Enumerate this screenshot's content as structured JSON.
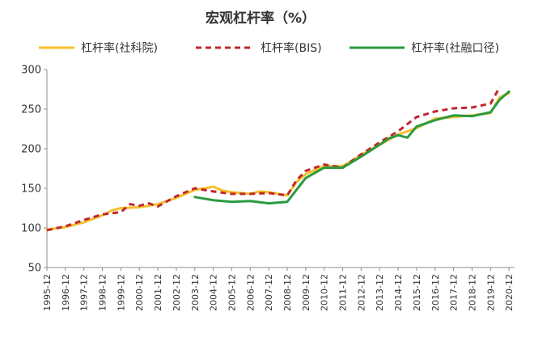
{
  "chart_data": {
    "type": "line",
    "title": "宏观杠杆率（%）",
    "xlabel": "",
    "ylabel": "",
    "ylim": [
      50,
      300
    ],
    "yticks": [
      "300",
      "250",
      "200",
      "150",
      "100",
      "50"
    ],
    "grid": false,
    "legend_position": "top",
    "x_tick_labels": [
      "1995-12",
      "1996-12",
      "1997-12",
      "1998-12",
      "1999-12",
      "2000-12",
      "2001-12",
      "2002-12",
      "2003-12",
      "2004-12",
      "2005-12",
      "2006-12",
      "2007-12",
      "2008-12",
      "2009-12",
      "2010-12",
      "2011-12",
      "2012-12",
      "2013-12",
      "2014-12",
      "2015-12",
      "2016-12",
      "2017-12",
      "2018-12",
      "2019-12",
      "2020-12"
    ],
    "series": [
      {
        "name": "杠杆率(社科院)",
        "color": "#F5C02B",
        "dash": "solid",
        "x": [
          1995,
          1996,
          1997,
          1998,
          1998.5,
          1999,
          2000,
          2001,
          2002,
          2003,
          2004,
          2004.5,
          2005,
          2006,
          2006.5,
          2007,
          2008,
          2008.5,
          2009,
          2010,
          2011,
          2012,
          2013,
          2014,
          2015,
          2016,
          2017,
          2018,
          2019,
          2019.5,
          2020
        ],
        "values": [
          98,
          101,
          107,
          116,
          122,
          125,
          126,
          130,
          138,
          148,
          152,
          147,
          145,
          143,
          146,
          145,
          141,
          158,
          168,
          178,
          178,
          192,
          205,
          218,
          226,
          238,
          240,
          242,
          245,
          265,
          270
        ]
      },
      {
        "name": "杠杆率(BIS)",
        "color": "#C0272D",
        "dash": "dashed",
        "x": [
          1995,
          1996,
          1997,
          1998,
          1999,
          1999.5,
          2000,
          2000.5,
          2001,
          2002,
          2003,
          2004,
          2005,
          2006,
          2007,
          2008,
          2008.5,
          2009,
          2010,
          2011,
          2012,
          2013,
          2014,
          2015,
          2016,
          2017,
          2018,
          2019,
          2019.5
        ],
        "values": [
          97,
          102,
          110,
          117,
          120,
          130,
          128,
          131,
          127,
          140,
          150,
          146,
          143,
          143,
          144,
          141,
          160,
          172,
          180,
          176,
          193,
          208,
          222,
          240,
          247,
          251,
          252,
          257,
          278
        ]
      },
      {
        "name": "杠杆率(社融口径)",
        "color": "#2B9A3F",
        "dash": "solid",
        "x": [
          2003,
          2004,
          2005,
          2006,
          2007,
          2008,
          2009,
          2010,
          2011,
          2012,
          2013,
          2013.5,
          2014,
          2014.5,
          2015,
          2016,
          2017,
          2018,
          2019,
          2019.5,
          2020
        ],
        "values": [
          139,
          135,
          133,
          134,
          131,
          133,
          163,
          176,
          176,
          190,
          205,
          213,
          217,
          214,
          228,
          236,
          242,
          241,
          246,
          262,
          272
        ]
      }
    ]
  }
}
